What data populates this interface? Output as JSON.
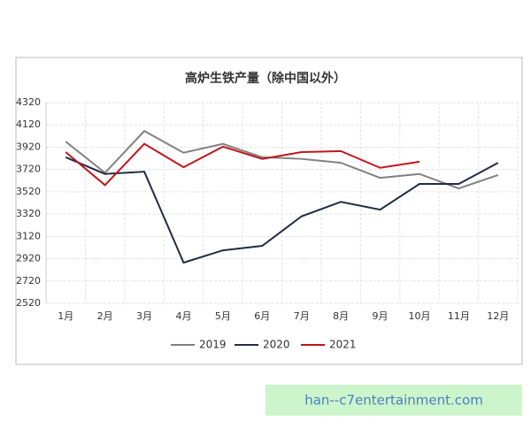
{
  "chart_data": {
    "type": "line",
    "title": "高炉生铁产量（除中国以外）",
    "categories": [
      "1月",
      "2月",
      "3月",
      "4月",
      "5月",
      "6月",
      "7月",
      "8月",
      "9月",
      "10月",
      "11月",
      "12月"
    ],
    "series": [
      {
        "name": "2019",
        "color": "#808080",
        "values": [
          3970,
          3690,
          4065,
          3870,
          3950,
          3830,
          3815,
          3780,
          3645,
          3680,
          3550,
          3670
        ]
      },
      {
        "name": "2020",
        "color": "#1f2d45",
        "values": [
          3830,
          3680,
          3700,
          2885,
          2995,
          3035,
          3300,
          3430,
          3360,
          3590,
          3590,
          3780
        ]
      },
      {
        "name": "2021",
        "color": "#c0161c",
        "values": [
          3876,
          3580,
          3950,
          3740,
          3925,
          3815,
          3876,
          3885,
          3735,
          3790,
          null,
          null
        ]
      }
    ],
    "ylim": [
      2520,
      4320
    ],
    "yticks": [
      2520,
      2720,
      2920,
      3120,
      3320,
      3520,
      3720,
      3920,
      4120,
      4320
    ],
    "grid": true,
    "legend": "bottom"
  },
  "watermark": "han--c7entertainment.com"
}
